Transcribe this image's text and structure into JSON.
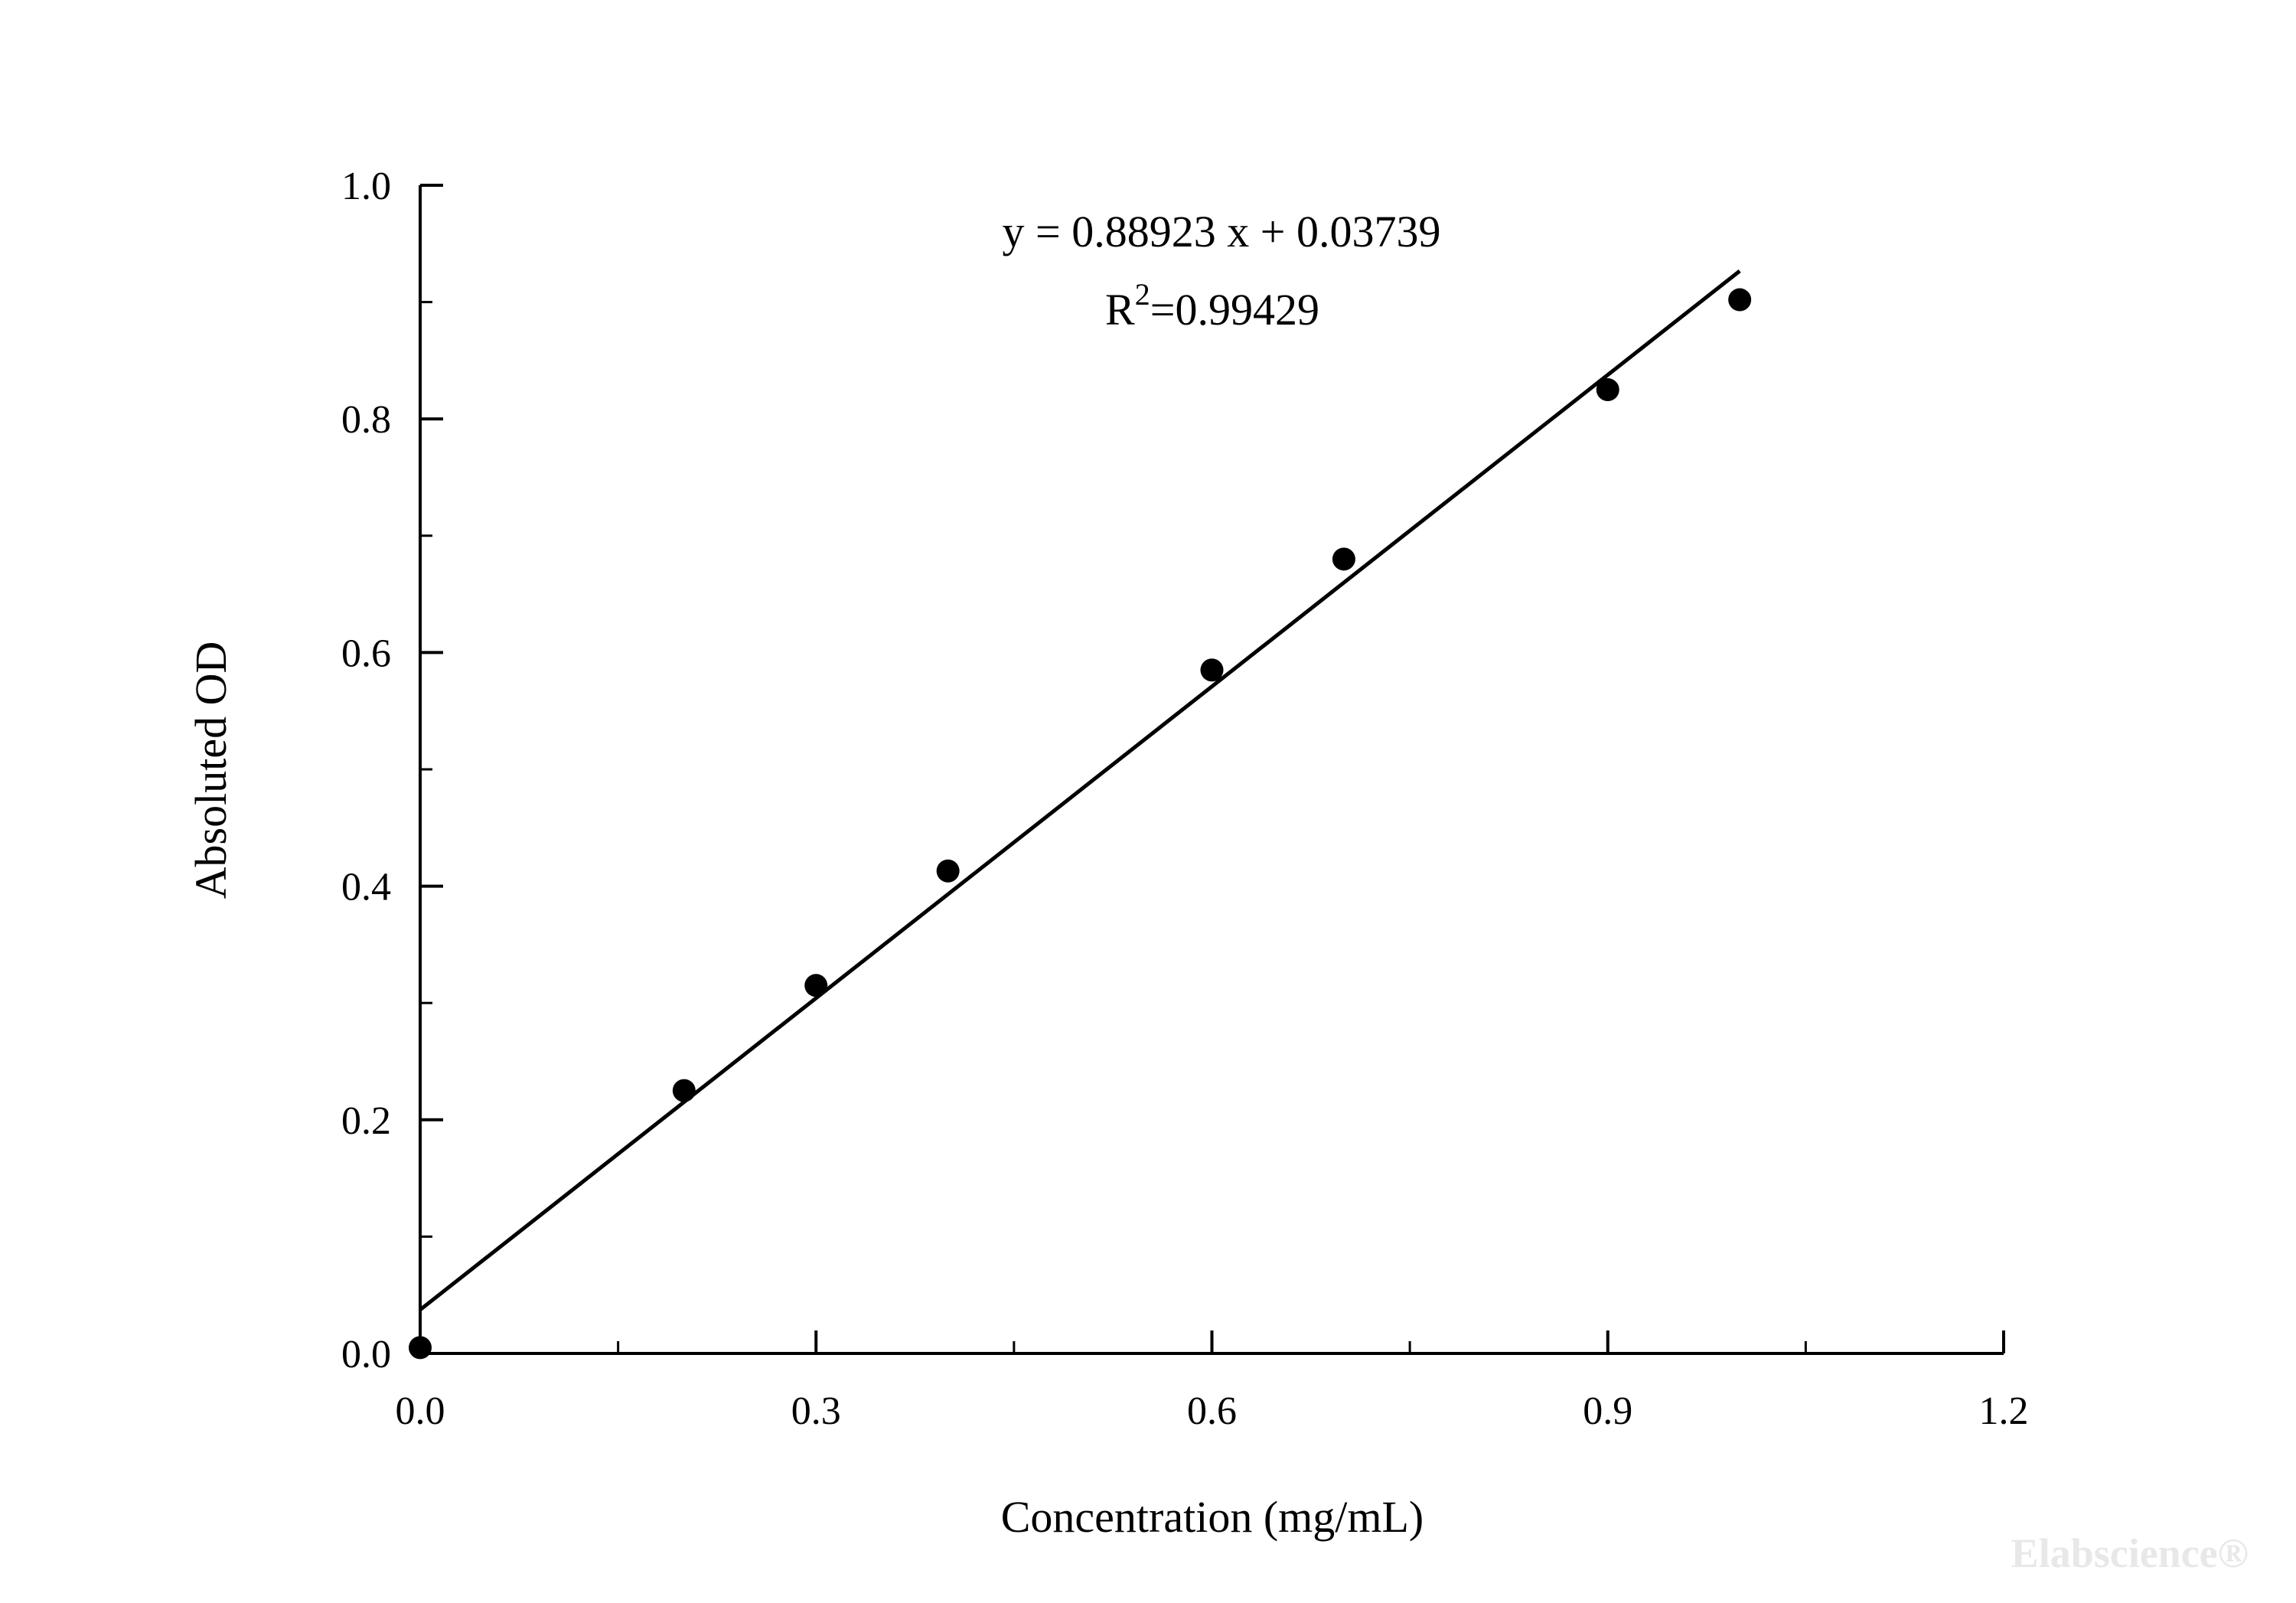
{
  "watermark": {
    "text": "Elabscience®",
    "color": "#e8e8e8"
  },
  "chart_data": {
    "type": "scatter",
    "title": "",
    "xlabel": "Concentration (mg/mL)",
    "ylabel": "Absoluted OD",
    "xlim": [
      0,
      1.2
    ],
    "ylim": [
      0,
      1.0
    ],
    "x_major_ticks": [
      0.0,
      0.3,
      0.6,
      0.9,
      1.2
    ],
    "x_minor_step": 0.15,
    "y_major_ticks": [
      0.0,
      0.2,
      0.4,
      0.6,
      0.8,
      1.0
    ],
    "y_minor_step": 0.1,
    "grid": false,
    "legend": "none",
    "marker_color": "#000000",
    "line_color": "#000000",
    "points": [
      [
        0.0,
        0.005
      ],
      [
        0.2,
        0.225
      ],
      [
        0.3,
        0.315
      ],
      [
        0.4,
        0.413
      ],
      [
        0.6,
        0.585
      ],
      [
        0.7,
        0.68
      ],
      [
        0.9,
        0.825
      ],
      [
        1.0,
        0.902
      ]
    ],
    "fit": {
      "slope": 0.88923,
      "intercept": 0.03739,
      "r_squared": 0.99429,
      "x_range": [
        0.0,
        1.0
      ]
    },
    "annotations": {
      "equation": "y = 0.88923 x + 0.03739",
      "r_label": "R",
      "r_sup": "2",
      "r_value": "=0.99429"
    }
  }
}
